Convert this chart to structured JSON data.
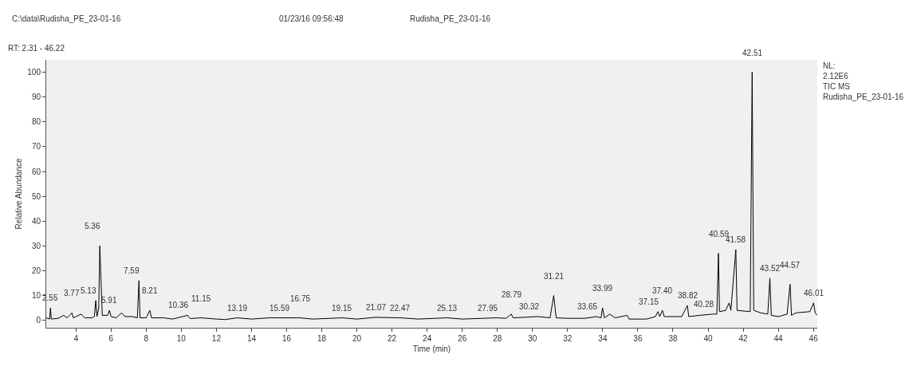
{
  "chart_data": {
    "type": "line",
    "xlabel": "Time (min)",
    "ylabel": "Relative Abundance",
    "color": "#000000",
    "xlim": [
      2.31,
      46.22
    ],
    "xticks": [
      4,
      6,
      8,
      10,
      12,
      14,
      16,
      18,
      20,
      22,
      24,
      26,
      28,
      30,
      32,
      34,
      36,
      38,
      40,
      42,
      44,
      46
    ],
    "ylim": [
      -3,
      105
    ],
    "yticks": [
      0,
      10,
      20,
      30,
      40,
      50,
      60,
      70,
      80,
      90,
      100
    ],
    "grid": false,
    "legend": false,
    "marker": "none",
    "line_style": "solid",
    "x": [
      2.31,
      2.5,
      2.55,
      2.6,
      3.0,
      3.3,
      3.5,
      3.77,
      3.85,
      4.3,
      4.5,
      4.9,
      5.05,
      5.13,
      5.2,
      5.3,
      5.36,
      5.42,
      5.5,
      5.8,
      5.91,
      6.0,
      6.3,
      6.6,
      6.8,
      7.2,
      7.5,
      7.59,
      7.65,
      8.0,
      8.21,
      8.3,
      9.0,
      9.5,
      10.36,
      10.5,
      11.15,
      12.0,
      12.5,
      13.19,
      14.0,
      15.0,
      15.59,
      16.75,
      17.5,
      19.15,
      20.0,
      21.07,
      22.47,
      23.5,
      25.13,
      26.0,
      27.95,
      28.5,
      28.79,
      28.9,
      30.32,
      31.0,
      31.21,
      31.35,
      32.0,
      33.0,
      33.65,
      33.9,
      33.99,
      34.1,
      34.4,
      34.7,
      35.4,
      35.5,
      36.5,
      37.0,
      37.15,
      37.25,
      37.4,
      37.5,
      38.5,
      38.82,
      38.9,
      39.5,
      40.28,
      40.5,
      40.59,
      40.65,
      41.0,
      41.2,
      41.3,
      41.58,
      41.65,
      42.4,
      42.51,
      42.6,
      43.0,
      43.4,
      43.52,
      43.6,
      44.0,
      44.5,
      44.67,
      44.75,
      45.0,
      45.8,
      46.01,
      46.1,
      46.22
    ],
    "values": [
      1,
      0.5,
      5,
      0.5,
      0.8,
      2,
      1,
      3,
      1,
      2.5,
      1,
      1,
      1.5,
      8,
      1.5,
      5,
      30,
      18,
      2,
      2,
      4,
      1.5,
      1,
      3,
      1.5,
      1.5,
      1,
      16,
      1,
      1,
      4,
      1,
      1,
      0.5,
      2,
      0.7,
      1,
      0.5,
      0.3,
      1,
      0.5,
      1,
      1,
      1,
      0.5,
      1,
      0.5,
      1.2,
      1,
      0.5,
      1,
      0.5,
      1,
      0.8,
      2.5,
      1,
      1.5,
      1,
      10,
      1,
      0.8,
      0.8,
      1.5,
      1,
      5,
      1,
      2.5,
      1,
      2,
      0.5,
      0.5,
      1.5,
      3.5,
      1.5,
      4,
      1.5,
      1.5,
      6,
      1.5,
      2,
      2.5,
      2.5,
      27,
      3.5,
      4,
      7,
      4,
      28.5,
      4,
      3.5,
      100,
      4,
      3,
      2.5,
      17,
      2,
      1.5,
      2.5,
      14.5,
      2,
      3,
      3.5,
      7,
      3,
      2
    ],
    "annotations": [
      "C:\\data\\Rudisha_PE_23-01-16",
      "01/23/16 09:56:48",
      "Rudisha_PE_23-01-16",
      "RT: 2.31 - 46.22",
      "NL:\n2.12E6\nTIC MS\nRudisha_PE_23-01-16",
      {
        "text": "2.55",
        "x": 2.55,
        "y": 5
      },
      {
        "text": "3.77",
        "x": 3.77,
        "y": 3
      },
      {
        "text": "5.13",
        "x": 5.13,
        "y": 8
      },
      {
        "text": "5.36",
        "x": 5.36,
        "y": 30
      },
      {
        "text": "5.91",
        "x": 5.91,
        "y": 4
      },
      {
        "text": "7.59",
        "x": 7.59,
        "y": 16
      },
      {
        "text": "8.21",
        "x": 8.21,
        "y": 4
      },
      {
        "text": "10.36",
        "x": 10.36,
        "y": 2
      },
      {
        "text": "11.15",
        "x": 11.15,
        "y": 1
      },
      {
        "text": "13.19",
        "x": 13.19,
        "y": 1
      },
      {
        "text": "15.59",
        "x": 15.59,
        "y": 1
      },
      {
        "text": "16.75",
        "x": 16.75,
        "y": 1
      },
      {
        "text": "19.15",
        "x": 19.15,
        "y": 1
      },
      {
        "text": "21.07",
        "x": 21.07,
        "y": 1.2
      },
      {
        "text": "22.47",
        "x": 22.47,
        "y": 1
      },
      {
        "text": "25.13",
        "x": 25.13,
        "y": 1
      },
      {
        "text": "27.95",
        "x": 27.95,
        "y": 1
      },
      {
        "text": "28.79",
        "x": 28.79,
        "y": 2.5
      },
      {
        "text": "30.32",
        "x": 30.32,
        "y": 1.5
      },
      {
        "text": "31.21",
        "x": 31.21,
        "y": 10
      },
      {
        "text": "33.65",
        "x": 33.65,
        "y": 1.5
      },
      {
        "text": "33.99",
        "x": 33.99,
        "y": 5
      },
      {
        "text": "37.15",
        "x": 37.15,
        "y": 3.5
      },
      {
        "text": "37.40",
        "x": 37.4,
        "y": 4
      },
      {
        "text": "38.82",
        "x": 38.82,
        "y": 6
      },
      {
        "text": "40.28",
        "x": 40.28,
        "y": 2.5
      },
      {
        "text": "40.59",
        "x": 40.59,
        "y": 27
      },
      {
        "text": "41.58",
        "x": 41.58,
        "y": 28.5
      },
      {
        "text": "42.51",
        "x": 42.51,
        "y": 100
      },
      {
        "text": "43.52",
        "x": 43.52,
        "y": 17
      },
      {
        "text": "44.57",
        "x": 44.67,
        "y": 14.5
      },
      {
        "text": "46.01",
        "x": 46.01,
        "y": 7
      }
    ]
  }
}
